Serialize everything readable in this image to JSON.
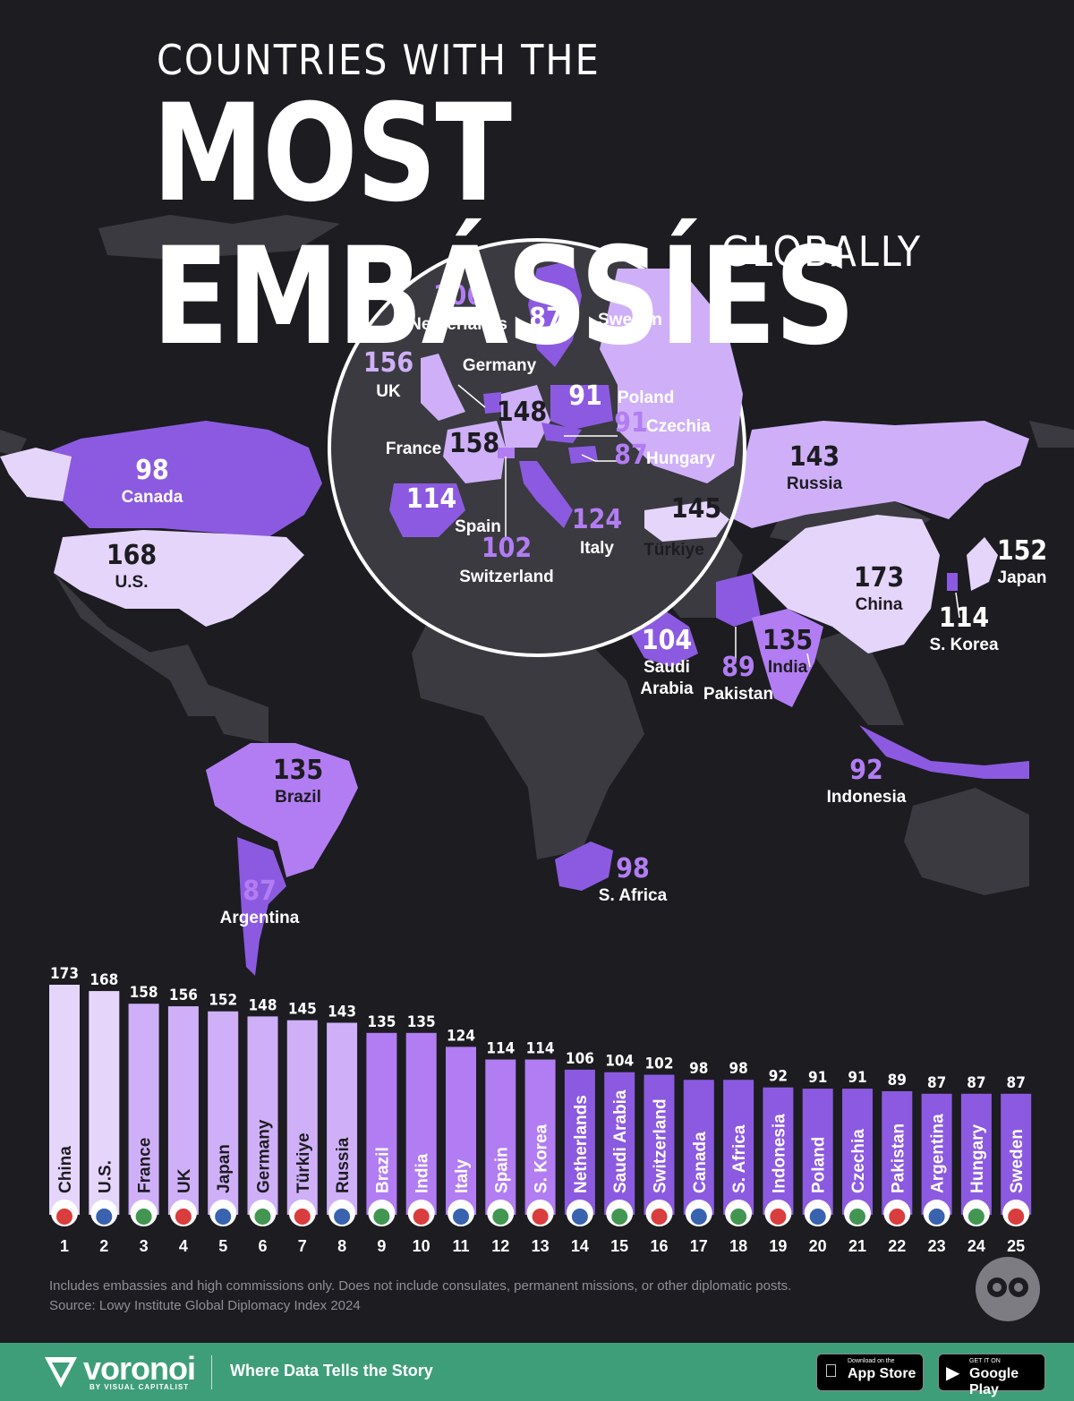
{
  "title": {
    "line1": "COUNTRIES WITH THE",
    "line2": "MOST EMBÁSSÍES",
    "line3": "GLOBALLY"
  },
  "colors": {
    "background": "#1c1c21",
    "land_other": "#3a3a40",
    "tier_highest": "#e6d5fb",
    "tier_high": "#cfb0f8",
    "tier_mid": "#b27df3",
    "tier_low": "#8c5ae0",
    "banner": "#3f9e7a"
  },
  "map_labels": [
    {
      "name": "Canada",
      "value": "98"
    },
    {
      "name": "U.S.",
      "value": "168"
    },
    {
      "name": "Brazil",
      "value": "135"
    },
    {
      "name": "Argentina",
      "value": "87"
    },
    {
      "name": "S. Africa",
      "value": "98"
    },
    {
      "name": "Saudi Arabia",
      "value": "104"
    },
    {
      "name": "Pakistan",
      "value": "89"
    },
    {
      "name": "India",
      "value": "135"
    },
    {
      "name": "China",
      "value": "173"
    },
    {
      "name": "Russia",
      "value": "143"
    },
    {
      "name": "Japan",
      "value": "152"
    },
    {
      "name": "S. Korea",
      "value": "114"
    },
    {
      "name": "Indonesia",
      "value": "92"
    }
  ],
  "inset_labels": [
    {
      "name": "Netherlands",
      "value": "106"
    },
    {
      "name": "Sweden",
      "value": "87"
    },
    {
      "name": "UK",
      "value": "156"
    },
    {
      "name": "Germany",
      "value": "148"
    },
    {
      "name": "Poland",
      "value": "91"
    },
    {
      "name": "Czechia",
      "value": "91"
    },
    {
      "name": "Hungary",
      "value": "87"
    },
    {
      "name": "France",
      "value": "158"
    },
    {
      "name": "Spain",
      "value": "114"
    },
    {
      "name": "Switzerland",
      "value": "102"
    },
    {
      "name": "Italy",
      "value": "124"
    },
    {
      "name": "Türkiye",
      "value": "145"
    }
  ],
  "chart_data": {
    "type": "bar",
    "categories": [
      "China",
      "U.S.",
      "France",
      "UK",
      "Japan",
      "Germany",
      "Türkiye",
      "Russia",
      "Brazil",
      "India",
      "Italy",
      "Spain",
      "S. Korea",
      "Netherlands",
      "Saudi Arabia",
      "Switzerland",
      "Canada",
      "S. Africa",
      "Indonesia",
      "Poland",
      "Czechia",
      "Pakistan",
      "Argentina",
      "Hungary",
      "Sweden"
    ],
    "values": [
      173,
      168,
      158,
      156,
      152,
      148,
      145,
      143,
      135,
      135,
      124,
      114,
      114,
      106,
      104,
      102,
      98,
      98,
      92,
      91,
      91,
      89,
      87,
      87,
      87
    ],
    "ranks": [
      "1",
      "2",
      "3",
      "4",
      "5",
      "6",
      "7",
      "8",
      "9",
      "10",
      "11",
      "12",
      "13",
      "14",
      "15",
      "16",
      "17",
      "18",
      "19",
      "20",
      "21",
      "22",
      "23",
      "24",
      "25"
    ],
    "flags": [
      "china-flag-icon",
      "us-flag-icon",
      "france-flag-icon",
      "uk-flag-icon",
      "japan-flag-icon",
      "germany-flag-icon",
      "turkiye-flag-icon",
      "russia-flag-icon",
      "brazil-flag-icon",
      "india-flag-icon",
      "italy-flag-icon",
      "spain-flag-icon",
      "south-korea-flag-icon",
      "netherlands-flag-icon",
      "saudi-arabia-flag-icon",
      "switzerland-flag-icon",
      "canada-flag-icon",
      "south-africa-flag-icon",
      "indonesia-flag-icon",
      "poland-flag-icon",
      "czechia-flag-icon",
      "pakistan-flag-icon",
      "argentina-flag-icon",
      "hungary-flag-icon",
      "sweden-flag-icon"
    ]
  },
  "footnote": "Includes embassies and high commissions only. Does not include consulates, permanent missions, or other diplomatic posts.",
  "source": "Source: Lowy Institute Global Diplomacy Index 2024",
  "banner": {
    "brand": "voronoi",
    "brand_sub": "BY VISUAL CAPITALIST",
    "tagline": "Where Data Tells the Story",
    "app_store_small": "Download on the",
    "app_store": "App Store",
    "google_play_small": "GET IT ON",
    "google_play": "Google Play"
  }
}
